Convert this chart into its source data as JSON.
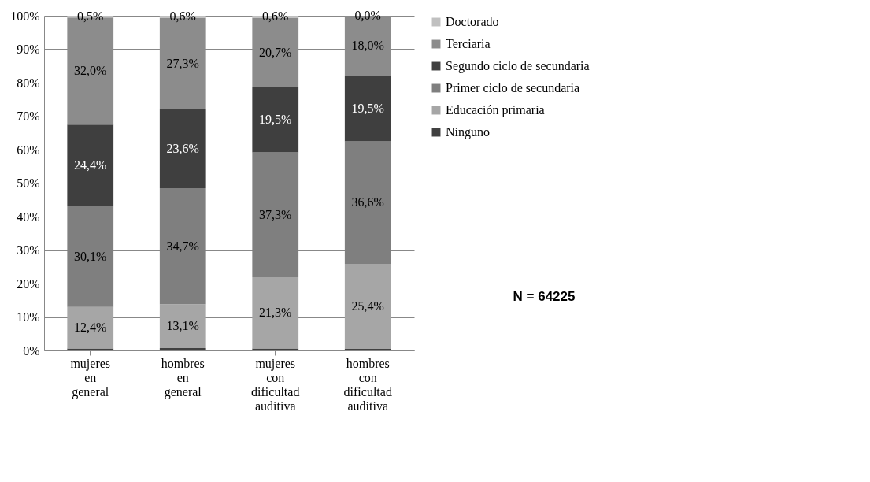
{
  "chart_data": {
    "type": "bar",
    "stacked": true,
    "categories": [
      "mujeres en general",
      "hombres en general",
      "mujeres con dificultad auditiva",
      "hombres con dificultad auditiva"
    ],
    "series": [
      {
        "name": "Ninguno",
        "color": "#404040",
        "values": [
          0.6,
          0.7,
          0.6,
          0.5
        ],
        "value_labels": [
          null,
          null,
          null,
          null
        ]
      },
      {
        "name": "Educación primaria",
        "color": "#a6a6a6",
        "values": [
          12.4,
          13.1,
          21.3,
          25.4
        ],
        "value_labels": [
          "12,4%",
          "13,1%",
          "21,3%",
          "25,4%"
        ]
      },
      {
        "name": "Primer ciclo de secundaria",
        "color": "#7f7f7f",
        "values": [
          30.1,
          34.7,
          37.3,
          36.6
        ],
        "value_labels": [
          "30,1%",
          "34,7%",
          "37,3%",
          "36,6%"
        ]
      },
      {
        "name": "Segundo ciclo de secundaria",
        "color": "#3f3f3f",
        "values": [
          24.4,
          23.6,
          19.5,
          19.5
        ],
        "value_labels": [
          "24,4%",
          "23,6%",
          "19,5%",
          "19,5%"
        ]
      },
      {
        "name": "Terciaria",
        "color": "#8c8c8c",
        "values": [
          32.0,
          27.3,
          20.7,
          18.0
        ],
        "value_labels": [
          "32,0%",
          "27,3%",
          "20,7%",
          "18,0%"
        ]
      },
      {
        "name": "Doctorado",
        "color": "#c0c0c0",
        "values": [
          0.5,
          0.6,
          0.6,
          0.0
        ],
        "value_labels": [
          "0,5%",
          "0,6%",
          "0,6%",
          "0,0%"
        ]
      }
    ],
    "ylim": [
      0,
      100
    ],
    "yticks": [
      {
        "value": 0,
        "label": "0%"
      },
      {
        "value": 10,
        "label": "10%"
      },
      {
        "value": 20,
        "label": "20%"
      },
      {
        "value": 30,
        "label": "30%"
      },
      {
        "value": 40,
        "label": "40%"
      },
      {
        "value": 50,
        "label": "50%"
      },
      {
        "value": 60,
        "label": "60%"
      },
      {
        "value": 70,
        "label": "70%"
      },
      {
        "value": 80,
        "label": "80%"
      },
      {
        "value": 90,
        "label": "90%"
      },
      {
        "value": 100,
        "label": "100%"
      }
    ],
    "grid": "y",
    "legend": "right",
    "annotations": [
      "N = 64225"
    ]
  }
}
